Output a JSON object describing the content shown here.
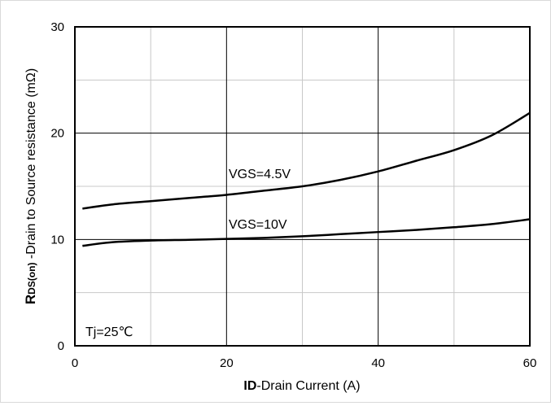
{
  "chart_data": {
    "type": "line",
    "xlabel_bold": "ID",
    "xlabel_rest": "-Drain Current  (A)",
    "ylabel_main": "R",
    "ylabel_sub": "DS(on)",
    "ylabel_rest": " -Drain to Source resistance  (mΩ)",
    "xlim": [
      0,
      60
    ],
    "ylim": [
      0,
      30
    ],
    "x_ticks": [
      0,
      20,
      40,
      60
    ],
    "y_ticks": [
      0,
      10,
      20,
      30
    ],
    "x_tick_labels": [
      "0",
      "20",
      "40",
      "60"
    ],
    "y_tick_labels": [
      "0",
      "10",
      "20",
      "30"
    ],
    "grid": true,
    "annotation": "Tj=25℃",
    "series": [
      {
        "name": "VGS=4.5V",
        "color": "#000000",
        "x": [
          1,
          5,
          10,
          15,
          20,
          25,
          30,
          35,
          40,
          45,
          50,
          55,
          60
        ],
        "y": [
          12.9,
          13.3,
          13.6,
          13.9,
          14.2,
          14.6,
          15.0,
          15.6,
          16.4,
          17.4,
          18.4,
          19.8,
          21.9
        ]
      },
      {
        "name": "VGS=10V",
        "color": "#000000",
        "x": [
          1,
          5,
          10,
          15,
          20,
          25,
          30,
          35,
          40,
          45,
          50,
          55,
          60
        ],
        "y": [
          9.4,
          9.75,
          9.9,
          9.97,
          10.05,
          10.15,
          10.3,
          10.5,
          10.7,
          10.9,
          11.15,
          11.45,
          11.9
        ]
      }
    ]
  }
}
